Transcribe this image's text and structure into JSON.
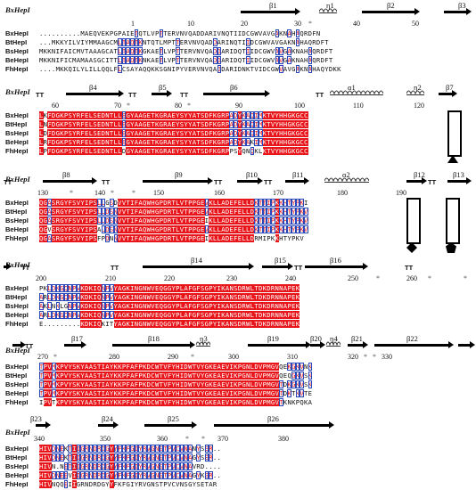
{
  "blocks": [
    {
      "id": "b1",
      "label": "BxHepI",
      "ss": [
        {
          "kind": "text",
          "text": "β1"
        },
        {
          "kind": "text",
          "text": "η1"
        },
        {
          "kind": "text",
          "text": "β2"
        },
        {
          "kind": "text",
          "text": "β3"
        }
      ],
      "numbers": [
        "1",
        "10",
        "20",
        "30",
        "40",
        "50"
      ],
      "rows": [
        {
          "name": "BxHepI",
          "seq": "..........MAEQVEKPGPAIETQTLVPTTERVNVQADDARIVNQTIIDCGWVAVGAKNAHAQRDFN"
        },
        {
          "name": "BtHepI",
          "seq": "...MKKYILVIYMMAAGCMLTAQTKNTQTLMPTTERVNVQADDARINQTIIDCGWVAVGAKNAHAQRDFT"
        },
        {
          "name": "BsHepI",
          "seq": "MKKNIFAICMVTAAAGCATLTAQTKGKAETLVPTTERVNVQADDARIDQTIIDCGWVAVGAKNAHAQRDFT"
        },
        {
          "name": "BeHepI",
          "seq": "MKKNIFICMAMAASGCITTLTAQTKNKAETLVPTTERVNVQADDARIDQTIIDCGWVAVGAKNAHAQRDFT"
        },
        {
          "name": "FhHepI",
          "seq": "....MKKQILYLILLQQLFLCSAYAQQKKSGNIPYVERVNVQADDARIDNKTVIDCGWVAVGAKNAHAQYDKK"
        }
      ]
    },
    {
      "id": "b2",
      "label": "BxHepI",
      "ss": [
        {
          "kind": "text",
          "text": "β4"
        },
        {
          "kind": "text",
          "text": "β5"
        },
        {
          "kind": "text",
          "text": "β6"
        },
        {
          "kind": "text",
          "text": "α1"
        },
        {
          "kind": "text",
          "text": "η2"
        },
        {
          "kind": "text",
          "text": "β7"
        }
      ],
      "numbers": [
        "60",
        "70",
        "80",
        "90",
        "100",
        "110",
        "120"
      ],
      "rows": [
        {
          "name": "BxHepI",
          "seq": "LKFDGKPSYRFELSEDNTLLEGYAAGETKGRAEYSYYATSDFKGRPADYKAQIMKTVYHHGKGCC"
        },
        {
          "name": "BtHepI",
          "seq": "LNFDGKPSYRFELSEDNTLLEGYAAGETKGRAEYSYYATSDFKGRPADYKAQIMKTVYHHGKGCC"
        },
        {
          "name": "BsHepI",
          "seq": "LDFDGKPSYRFELSEDNTLLEGYAAGETKGRAEYSYYATSDFKGRPADYKAQIMKTVYHHGKGCC"
        },
        {
          "name": "BeHepI",
          "seq": "LRFDGKPSYRFELSEDNTLLEGYAAGETKGRAEYSYYATSDFKGRPADYKAKIMKTVYHHGKGCC"
        },
        {
          "name": "FhHepI",
          "seq": "LPFDGKPSYRFELSEDNTLLDGYAAGETKGRAEYSYYATSDFKGRPPSYQNQKLKTVYHHGKGCC"
        }
      ]
    },
    {
      "id": "b3",
      "label": "BxHepI",
      "ss": [
        {
          "kind": "text",
          "text": "β8"
        },
        {
          "kind": "text",
          "text": "β9"
        },
        {
          "kind": "text",
          "text": "β10"
        },
        {
          "kind": "text",
          "text": "β11"
        },
        {
          "kind": "text",
          "text": "α2"
        },
        {
          "kind": "text",
          "text": "β12"
        },
        {
          "kind": "text",
          "text": "β13"
        }
      ],
      "numbers": [
        "130",
        "140",
        "150",
        "160",
        "170",
        "180",
        "190"
      ],
      "rows": [
        {
          "name": "BxHepI",
          "seq": "QGASRGYFSVYIPSLLGSDVVTIFAQWHGPDRTLVTPPGEVKLLADEFELLDKTTIPKKHTYPKI"
        },
        {
          "name": "BtHepI",
          "seq": "QGASRGYFSVYIPSLLDSNVVTIFAQWHGPDRTLVTPPGEVKLLADEFELLDKTTIPKKHTYPKV"
        },
        {
          "name": "BsHepI",
          "seq": "QGASRGYFSVYIPSLLDSNVVTIFAQWHGPDRTLVTPPGEIKLLADEFELLDKTTIPKKHTYPKV"
        },
        {
          "name": "BeHepI",
          "seq": "QGVSRGYFSVYIPSALDSNVVTIFAQWHGPDRTLVTPPGEVKLLADEFELLDKTTIPKKHTYPKV"
        },
        {
          "name": "FhHepI",
          "seq": "QGASRGYFSVYIPSFPDNNVVTIFAQWHGPDRTLVTPPGEIKLLADEFELLDRMIPKKHTYPKV"
        }
      ]
    },
    {
      "id": "b4",
      "label": "BxHepI",
      "ss": [
        {
          "kind": "text",
          "text": "β14"
        },
        {
          "kind": "text",
          "text": "β15"
        },
        {
          "kind": "text",
          "text": "β16"
        }
      ],
      "numbers": [
        "200",
        "210",
        "220",
        "230",
        "240",
        "250",
        "260"
      ],
      "rows": [
        {
          "name": "BxHepI",
          "seq": "PKLDKGQNPVKDKIQNPVYAGKINGNWVEQGGYPLAFGFSGPYIKANSDRWLTDKDRNNAPEK"
        },
        {
          "name": "BtHepI",
          "seq": "ARLDKGQNPVKDKIQNPVYAGKINGNWVEQGGYPLAFGFSGPYIKANSDRWLTDKDRNNAPEK"
        },
        {
          "name": "BsHepI",
          "seq": "AKLNKLGNPVKDKIQNPVYAGKINGNWVEQGGYPLAFGFSGPYIKANSDRWLTDKDRNNAPEK"
        },
        {
          "name": "BeHepI",
          "seq": "ARLDKGQNPVKDKIQNPVYAGKINGNWVEQGGYPLAFGFSGPYIKANSDRWLTDKDRNNAPEK"
        },
        {
          "name": "FhHepI",
          "seq": "E.........KDKIQKITYAGKINGNWVEQGGYPLAFGFSGPYIKANSDRWLTDKDRNNAPEK"
        }
      ]
    },
    {
      "id": "b5",
      "label": "BxHepI",
      "ss": [
        {
          "kind": "text",
          "text": "β17"
        },
        {
          "kind": "text",
          "text": "β18"
        },
        {
          "kind": "text",
          "text": "η3"
        },
        {
          "kind": "text",
          "text": "β19"
        },
        {
          "kind": "text",
          "text": "β20"
        },
        {
          "kind": "text",
          "text": "η4"
        },
        {
          "kind": "text",
          "text": "β21"
        },
        {
          "kind": "text",
          "text": "β22"
        }
      ],
      "numbers": [
        "270",
        "280",
        "290",
        "300",
        "310",
        "320",
        "330"
      ],
      "rows": [
        {
          "name": "BxHepI",
          "seq": "TPVMKPVYSKYAASTIAYKKPFAFPKDCWTVFYHIDWTVYGKEAEVIKPGNLDVPMGVQEKGKVNK"
        },
        {
          "name": "BtHepI",
          "seq": "TPVMKPVYSKYAASTIAYKKPFAFPKDCWTVFYHIDWTVYGKEAEVIKPGNLDVPMGVQEQGKVSK"
        },
        {
          "name": "BsHepI",
          "seq": "TPVMKPVYSKYAASTIAYKKPFAFPKDCWTVFYHIDWTVYGKEAEVIKPGNLDVPMGVTDKGKVSK"
        },
        {
          "name": "BeHepI",
          "seq": "TPVMKPVYSKYAASTIAYKKPFAFPKDCWTVFYHIDWTVYGKEAEVIKPGNLDVPMGVTDKTKVTE"
        },
        {
          "name": "FhHepI",
          "seq": "IPVTKPVYSKYAASTIAYKKPFAFPKDCWTVFYHIDWTVYGKEAEVIKPGNLDVPMGVTKNKPQKA"
        }
      ]
    },
    {
      "id": "b6",
      "label": "BxHepI",
      "ss": [
        {
          "kind": "text",
          "text": "β23"
        },
        {
          "kind": "text",
          "text": "β24"
        },
        {
          "kind": "text",
          "text": "β25"
        },
        {
          "kind": "text",
          "text": "β26"
        }
      ],
      "numbers": [
        "340",
        "350",
        "360",
        "370",
        "380"
      ],
      "rows": [
        {
          "name": "BxHepI",
          "seq": "HIVDNEKTIIGRNDRDGYYFKFGIYRVGNSTPVCVNANYSER.."
        },
        {
          "name": "BtHepI",
          "seq": "HIVDNEKTIIGRNDRDGYYFKFGIYRVGNSTPVCVNAGYSER.."
        },
        {
          "name": "BsHepI",
          "seq": "HIVN.NETIIGRNDRDGYYFKFGIYRVGNSTPVCVNAVRD...."
        },
        {
          "name": "BeHepI",
          "seq": "HIVDNEEVIIGRNDRDGYYFKFGIYRVGNSTPVCVNAGYKER.."
        },
        {
          "name": "FhHepI",
          "seq": "HIVNQQEIIGRNDRDGYYFKFGIYRVGNSTPVCVNSGYSETAR"
        }
      ]
    }
  ],
  "tt_label": "TT",
  "star": "*"
}
